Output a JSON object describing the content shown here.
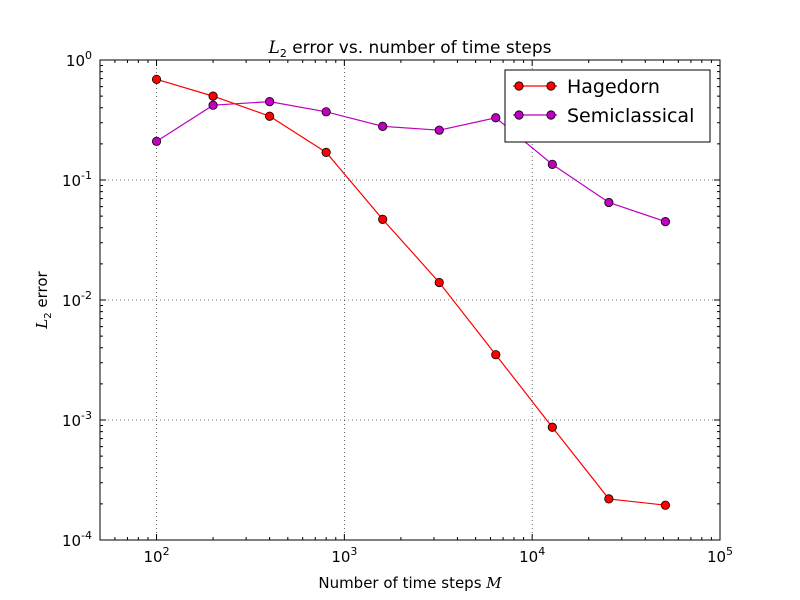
{
  "chart_data": {
    "type": "line",
    "title": {
      "math": "L",
      "sub": "2",
      "rest": " error vs. number of time steps"
    },
    "xlabel": {
      "text": "Number of time steps ",
      "math": "M"
    },
    "ylabel": {
      "math": "L",
      "sub": "2",
      "rest": " error"
    },
    "x_scale": "log",
    "y_scale": "log",
    "xlim": [
      50,
      100000
    ],
    "ylim": [
      0.0001,
      1
    ],
    "x_ticks": [
      {
        "value": 100,
        "base": "10",
        "exp": "2"
      },
      {
        "value": 1000,
        "base": "10",
        "exp": "3"
      },
      {
        "value": 10000,
        "base": "10",
        "exp": "4"
      },
      {
        "value": 100000,
        "base": "10",
        "exp": "5"
      }
    ],
    "y_ticks": [
      {
        "value": 1,
        "base": "10",
        "exp": "0"
      },
      {
        "value": 0.1,
        "base": "10",
        "exp": "-1"
      },
      {
        "value": 0.01,
        "base": "10",
        "exp": "-2"
      },
      {
        "value": 0.001,
        "base": "10",
        "exp": "-3"
      },
      {
        "value": 0.0001,
        "base": "10",
        "exp": "-4"
      }
    ],
    "grid": true,
    "legend_position": "top-right",
    "x": [
      100,
      200,
      400,
      800,
      1600,
      3200,
      6400,
      12800,
      25600,
      51200
    ],
    "series": [
      {
        "name": "Hagedorn",
        "color": "#ff0000",
        "values": [
          0.69,
          0.5,
          0.34,
          0.17,
          0.047,
          0.014,
          0.0035,
          0.00087,
          0.00022,
          0.000195
        ]
      },
      {
        "name": "Semiclassical",
        "color": "#bf00bf",
        "values": [
          0.21,
          0.42,
          0.45,
          0.37,
          0.28,
          0.26,
          0.33,
          0.135,
          0.065,
          0.045
        ]
      }
    ]
  }
}
